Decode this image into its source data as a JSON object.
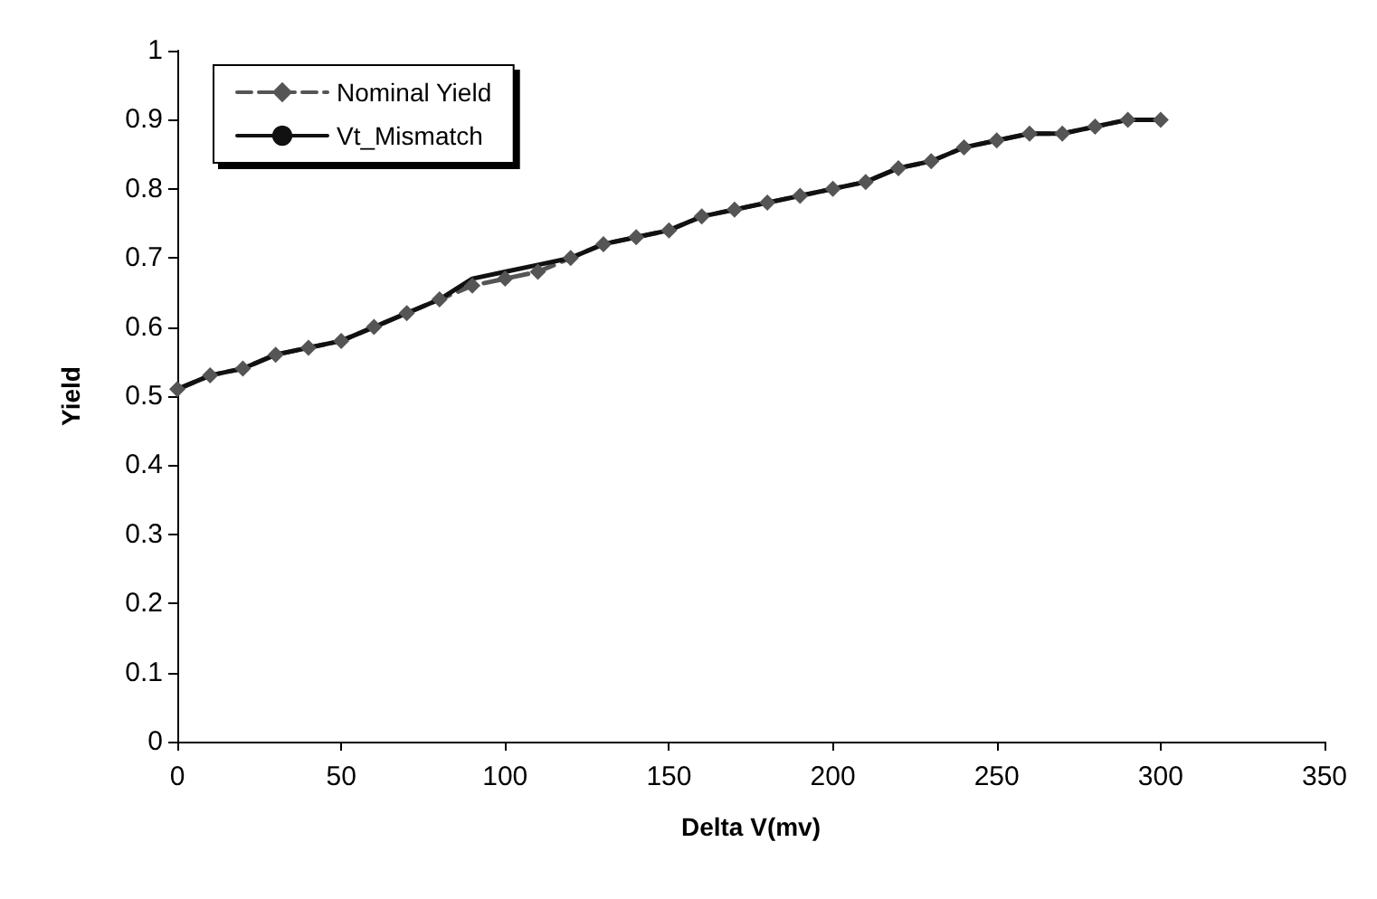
{
  "chart_data": {
    "type": "line",
    "xlabel": "Delta V(mv)",
    "ylabel": "Yield",
    "x": [
      0,
      10,
      20,
      30,
      40,
      50,
      60,
      70,
      80,
      90,
      100,
      110,
      120,
      130,
      140,
      150,
      160,
      170,
      180,
      190,
      200,
      210,
      220,
      230,
      240,
      250,
      260,
      270,
      280,
      290,
      300
    ],
    "series": [
      {
        "name": "Nominal Yield",
        "color": "#555555",
        "marker": "diamond",
        "line_style": "dashed",
        "values": [
          0.51,
          0.53,
          0.54,
          0.56,
          0.57,
          0.58,
          0.6,
          0.62,
          0.64,
          0.66,
          0.67,
          0.68,
          0.7,
          0.72,
          0.73,
          0.74,
          0.76,
          0.77,
          0.78,
          0.79,
          0.8,
          0.81,
          0.83,
          0.84,
          0.86,
          0.87,
          0.88,
          0.88,
          0.89,
          0.9,
          0.9
        ]
      },
      {
        "name": "Vt_Mismatch",
        "color": "#111111",
        "marker": "none",
        "line_style": "solid",
        "values": [
          0.51,
          0.53,
          0.54,
          0.56,
          0.57,
          0.58,
          0.6,
          0.62,
          0.64,
          0.67,
          0.68,
          0.69,
          0.7,
          0.72,
          0.73,
          0.74,
          0.76,
          0.77,
          0.78,
          0.79,
          0.8,
          0.81,
          0.83,
          0.84,
          0.86,
          0.87,
          0.88,
          0.88,
          0.89,
          0.9,
          0.9
        ]
      }
    ],
    "xlim": [
      0,
      350
    ],
    "xticks": [
      0,
      50,
      100,
      150,
      200,
      250,
      300,
      350
    ],
    "ylim": [
      0,
      1
    ],
    "yticks": [
      0,
      0.1,
      0.2,
      0.3,
      0.4,
      0.5,
      0.6,
      0.7,
      0.8,
      0.9,
      1
    ],
    "grid": false,
    "legend": "top left"
  }
}
